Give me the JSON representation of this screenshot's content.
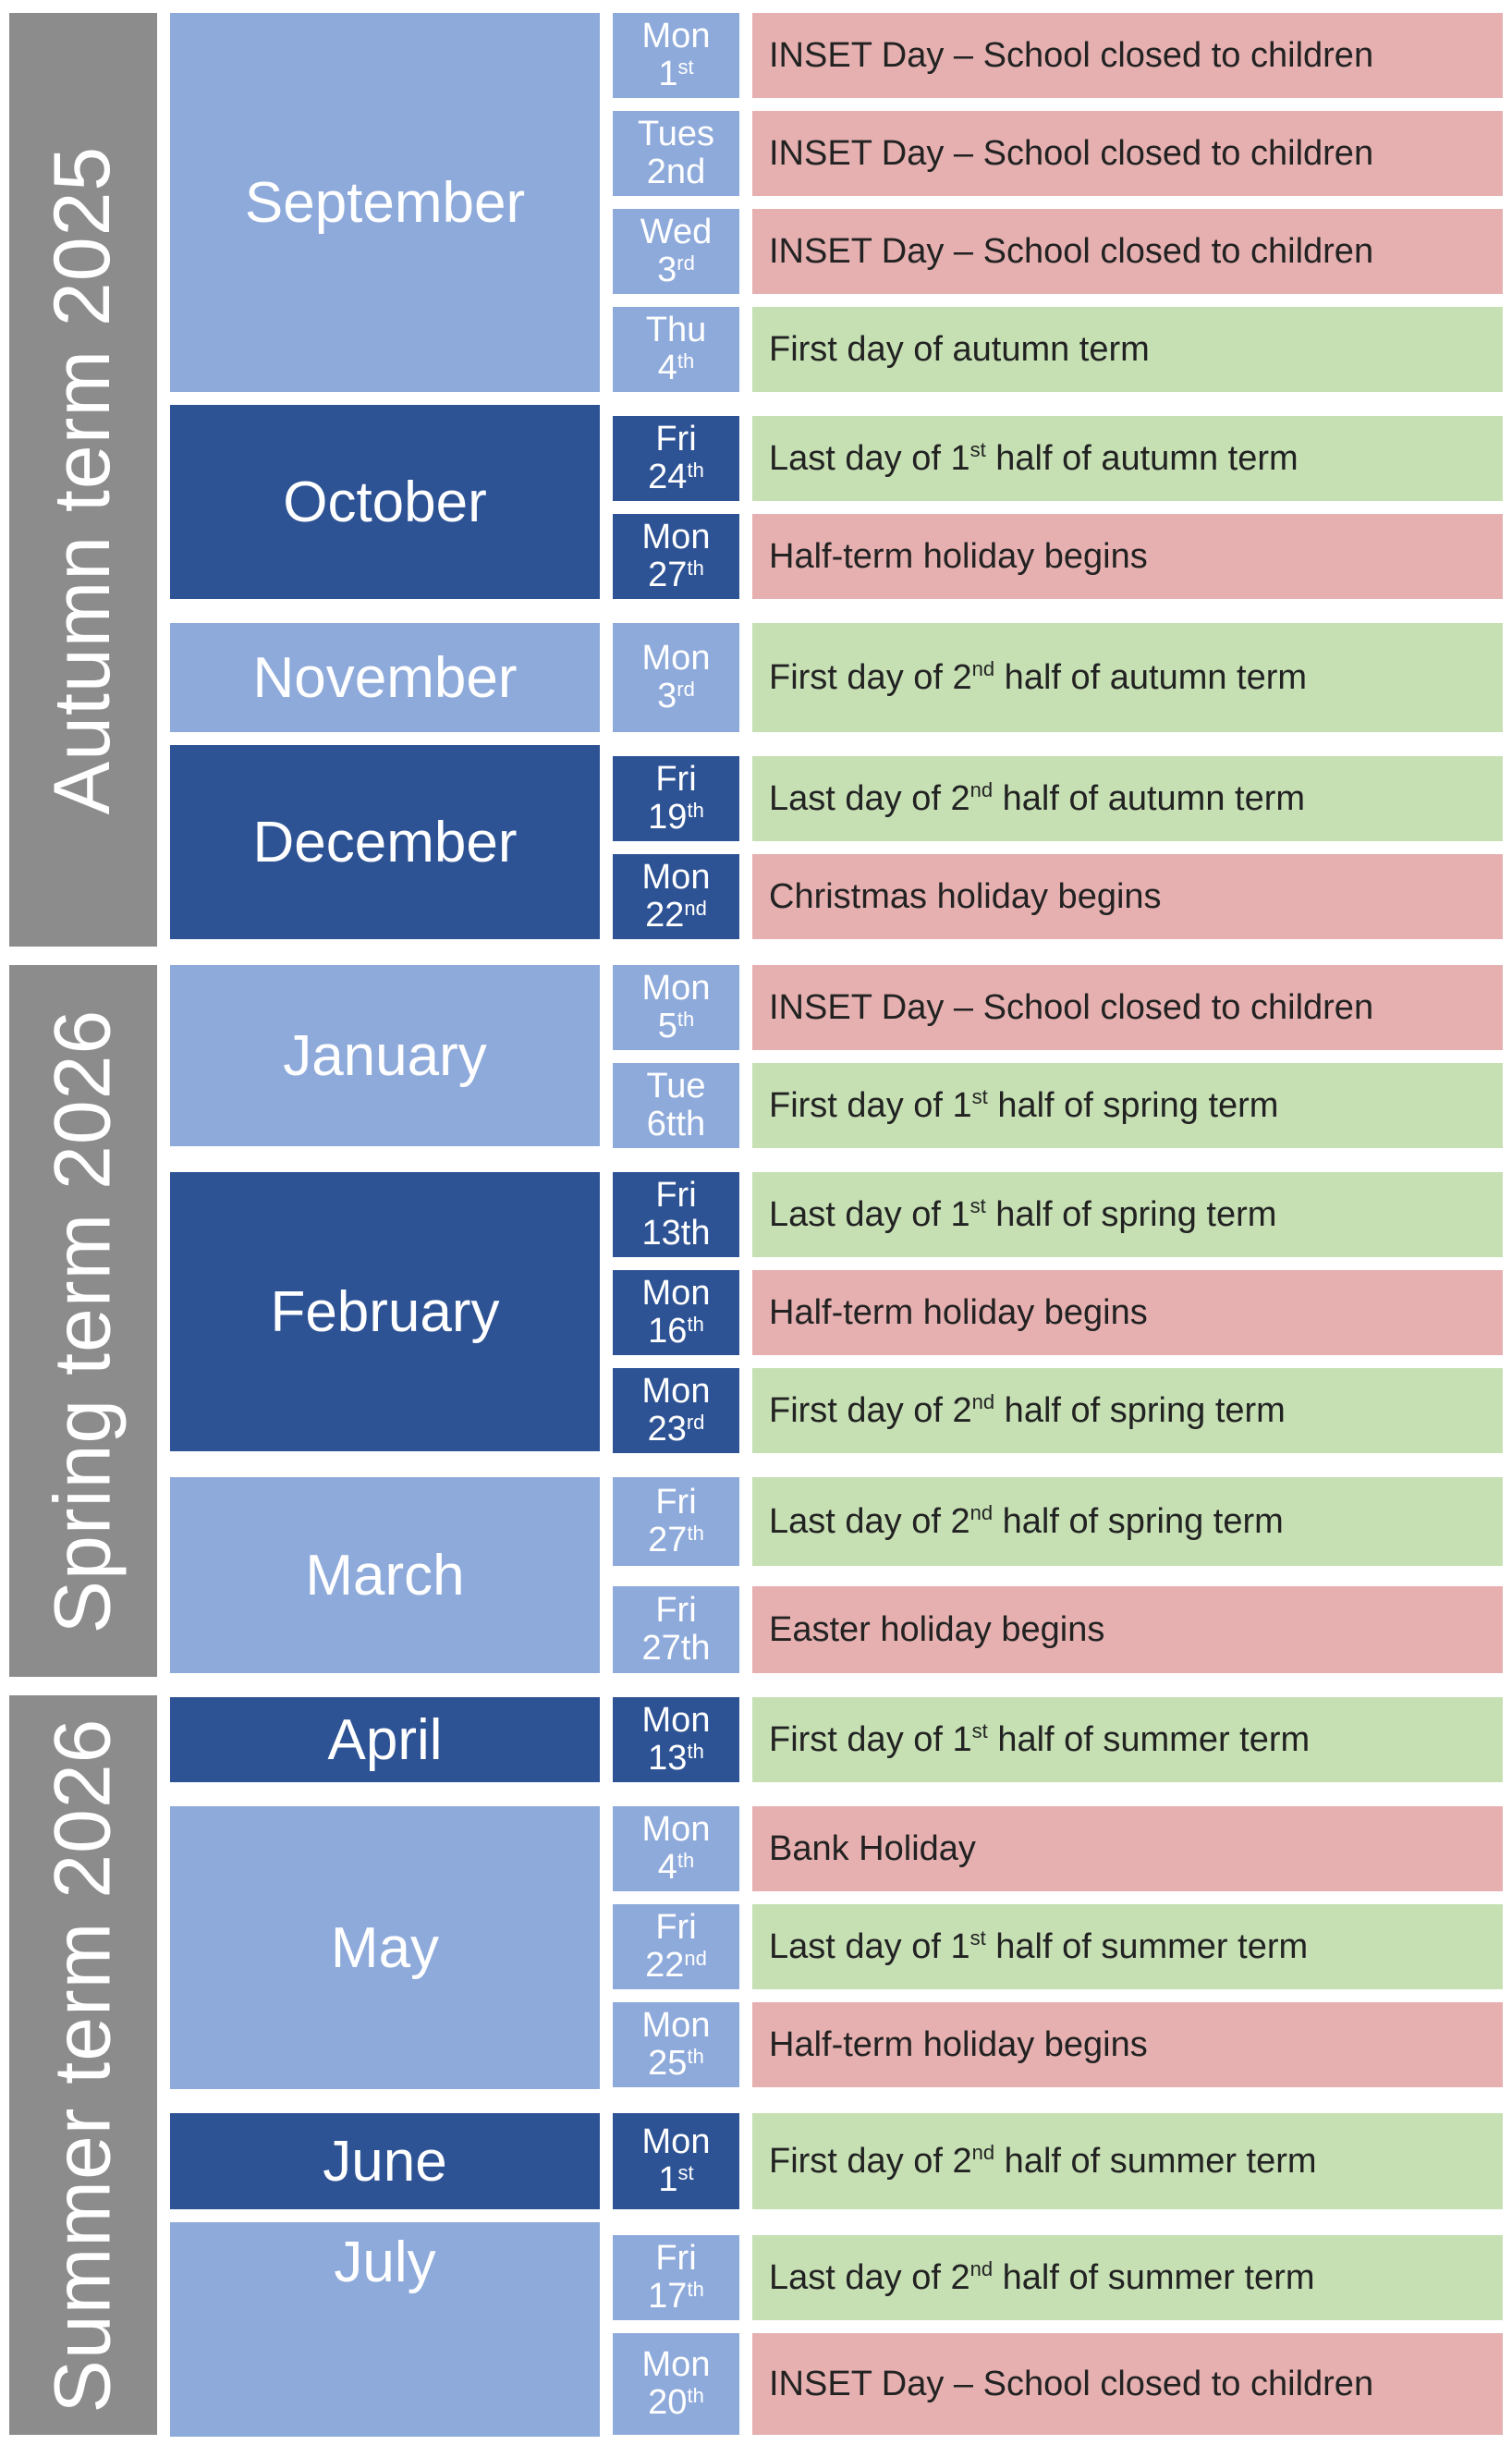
{
  "terms": [
    {
      "label": "Autumn term 2025"
    },
    {
      "label": "Spring term 2026"
    },
    {
      "label": "Summer term 2026"
    }
  ],
  "months": [
    {
      "name": "September"
    },
    {
      "name": "October"
    },
    {
      "name": "November"
    },
    {
      "name": "December"
    },
    {
      "name": "January"
    },
    {
      "name": "February"
    },
    {
      "name": "March"
    },
    {
      "name": "April"
    },
    {
      "name": "May"
    },
    {
      "name": "June"
    },
    {
      "name": "July"
    }
  ],
  "rows": [
    {
      "day": "Mon",
      "num": "1",
      "suf": "st",
      "ev_pre": "INSET Day – School closed to children",
      "ev_sup": "",
      "ev_post": "",
      "type": "closed"
    },
    {
      "day": "Tues",
      "num": "2nd",
      "suf": "",
      "ev_pre": "INSET Day – School closed to children",
      "ev_sup": "",
      "ev_post": "",
      "type": "closed"
    },
    {
      "day": "Wed",
      "num": "3",
      "suf": "rd",
      "ev_pre": "INSET Day – School closed to children",
      "ev_sup": "",
      "ev_post": "",
      "type": "closed"
    },
    {
      "day": "Thu",
      "num": "4",
      "suf": "th",
      "ev_pre": "First day of autumn term",
      "ev_sup": "",
      "ev_post": "",
      "type": "open"
    },
    {
      "day": "Fri",
      "num": "24",
      "suf": "th",
      "ev_pre": "Last day of 1",
      "ev_sup": "st",
      "ev_post": " half of autumn term",
      "type": "open"
    },
    {
      "day": "Mon",
      "num": "27",
      "suf": "th",
      "ev_pre": "Half-term holiday begins",
      "ev_sup": "",
      "ev_post": "",
      "type": "closed"
    },
    {
      "day": "Mon",
      "num": "3",
      "suf": "rd",
      "ev_pre": "First day of 2",
      "ev_sup": "nd",
      "ev_post": " half of autumn term",
      "type": "open"
    },
    {
      "day": "Fri",
      "num": "19",
      "suf": "th",
      "ev_pre": "Last day of 2",
      "ev_sup": "nd",
      "ev_post": " half of autumn term",
      "type": "open"
    },
    {
      "day": "Mon",
      "num": "22",
      "suf": "nd",
      "ev_pre": "Christmas holiday begins",
      "ev_sup": "",
      "ev_post": "",
      "type": "closed"
    },
    {
      "day": "Mon",
      "num": "5",
      "suf": "th",
      "ev_pre": "INSET Day – School closed to children",
      "ev_sup": "",
      "ev_post": "",
      "type": "closed"
    },
    {
      "day": "Tue",
      "num": "6tth",
      "suf": "",
      "ev_pre": "First day of 1",
      "ev_sup": "st",
      "ev_post": " half of spring term",
      "type": "open"
    },
    {
      "day": "Fri",
      "num": "13th",
      "suf": "",
      "ev_pre": "Last day of 1",
      "ev_sup": "st",
      "ev_post": " half of spring term",
      "type": "open"
    },
    {
      "day": "Mon",
      "num": "16",
      "suf": "th",
      "ev_pre": "Half-term holiday begins",
      "ev_sup": "",
      "ev_post": "",
      "type": "closed"
    },
    {
      "day": "Mon",
      "num": "23",
      "suf": "rd",
      "ev_pre": "First day of 2",
      "ev_sup": "nd",
      "ev_post": " half of spring term",
      "type": "open"
    },
    {
      "day": "Fri",
      "num": "27",
      "suf": "th",
      "ev_pre": "Last day of 2",
      "ev_sup": "nd",
      "ev_post": " half of spring term",
      "type": "open"
    },
    {
      "day": "Fri",
      "num": "27th",
      "suf": "",
      "ev_pre": "Easter holiday begins",
      "ev_sup": "",
      "ev_post": "",
      "type": "closed"
    },
    {
      "day": "Mon",
      "num": "13",
      "suf": "th",
      "ev_pre": "First day of 1",
      "ev_sup": "st",
      "ev_post": " half of summer term",
      "type": "open"
    },
    {
      "day": "Mon",
      "num": "4",
      "suf": "th",
      "ev_pre": "Bank Holiday",
      "ev_sup": "",
      "ev_post": "",
      "type": "closed"
    },
    {
      "day": "Fri",
      "num": "22",
      "suf": "nd",
      "ev_pre": "Last day of 1",
      "ev_sup": "st",
      "ev_post": " half of summer term",
      "type": "open"
    },
    {
      "day": "Mon",
      "num": "25",
      "suf": "th",
      "ev_pre": "Half-term holiday begins",
      "ev_sup": "",
      "ev_post": "",
      "type": "closed"
    },
    {
      "day": "Mon",
      "num": "1",
      "suf": "st",
      "ev_pre": "First day of 2",
      "ev_sup": "nd",
      "ev_post": " half of summer term",
      "type": "open"
    },
    {
      "day": "Fri",
      "num": "17",
      "suf": "th",
      "ev_pre": "Last day of 2",
      "ev_sup": "nd",
      "ev_post": " half of summer term",
      "type": "open"
    },
    {
      "day": "Mon",
      "num": "20",
      "suf": "th",
      "ev_pre": "INSET Day – School closed to children",
      "ev_sup": "",
      "ev_post": "",
      "type": "closed"
    }
  ],
  "colors": {
    "term_bg": "#8c8c8c",
    "month_light": "#8eaadb",
    "month_dark": "#2e5395",
    "closed": "#e6b0b0",
    "open": "#c6e0b4"
  }
}
